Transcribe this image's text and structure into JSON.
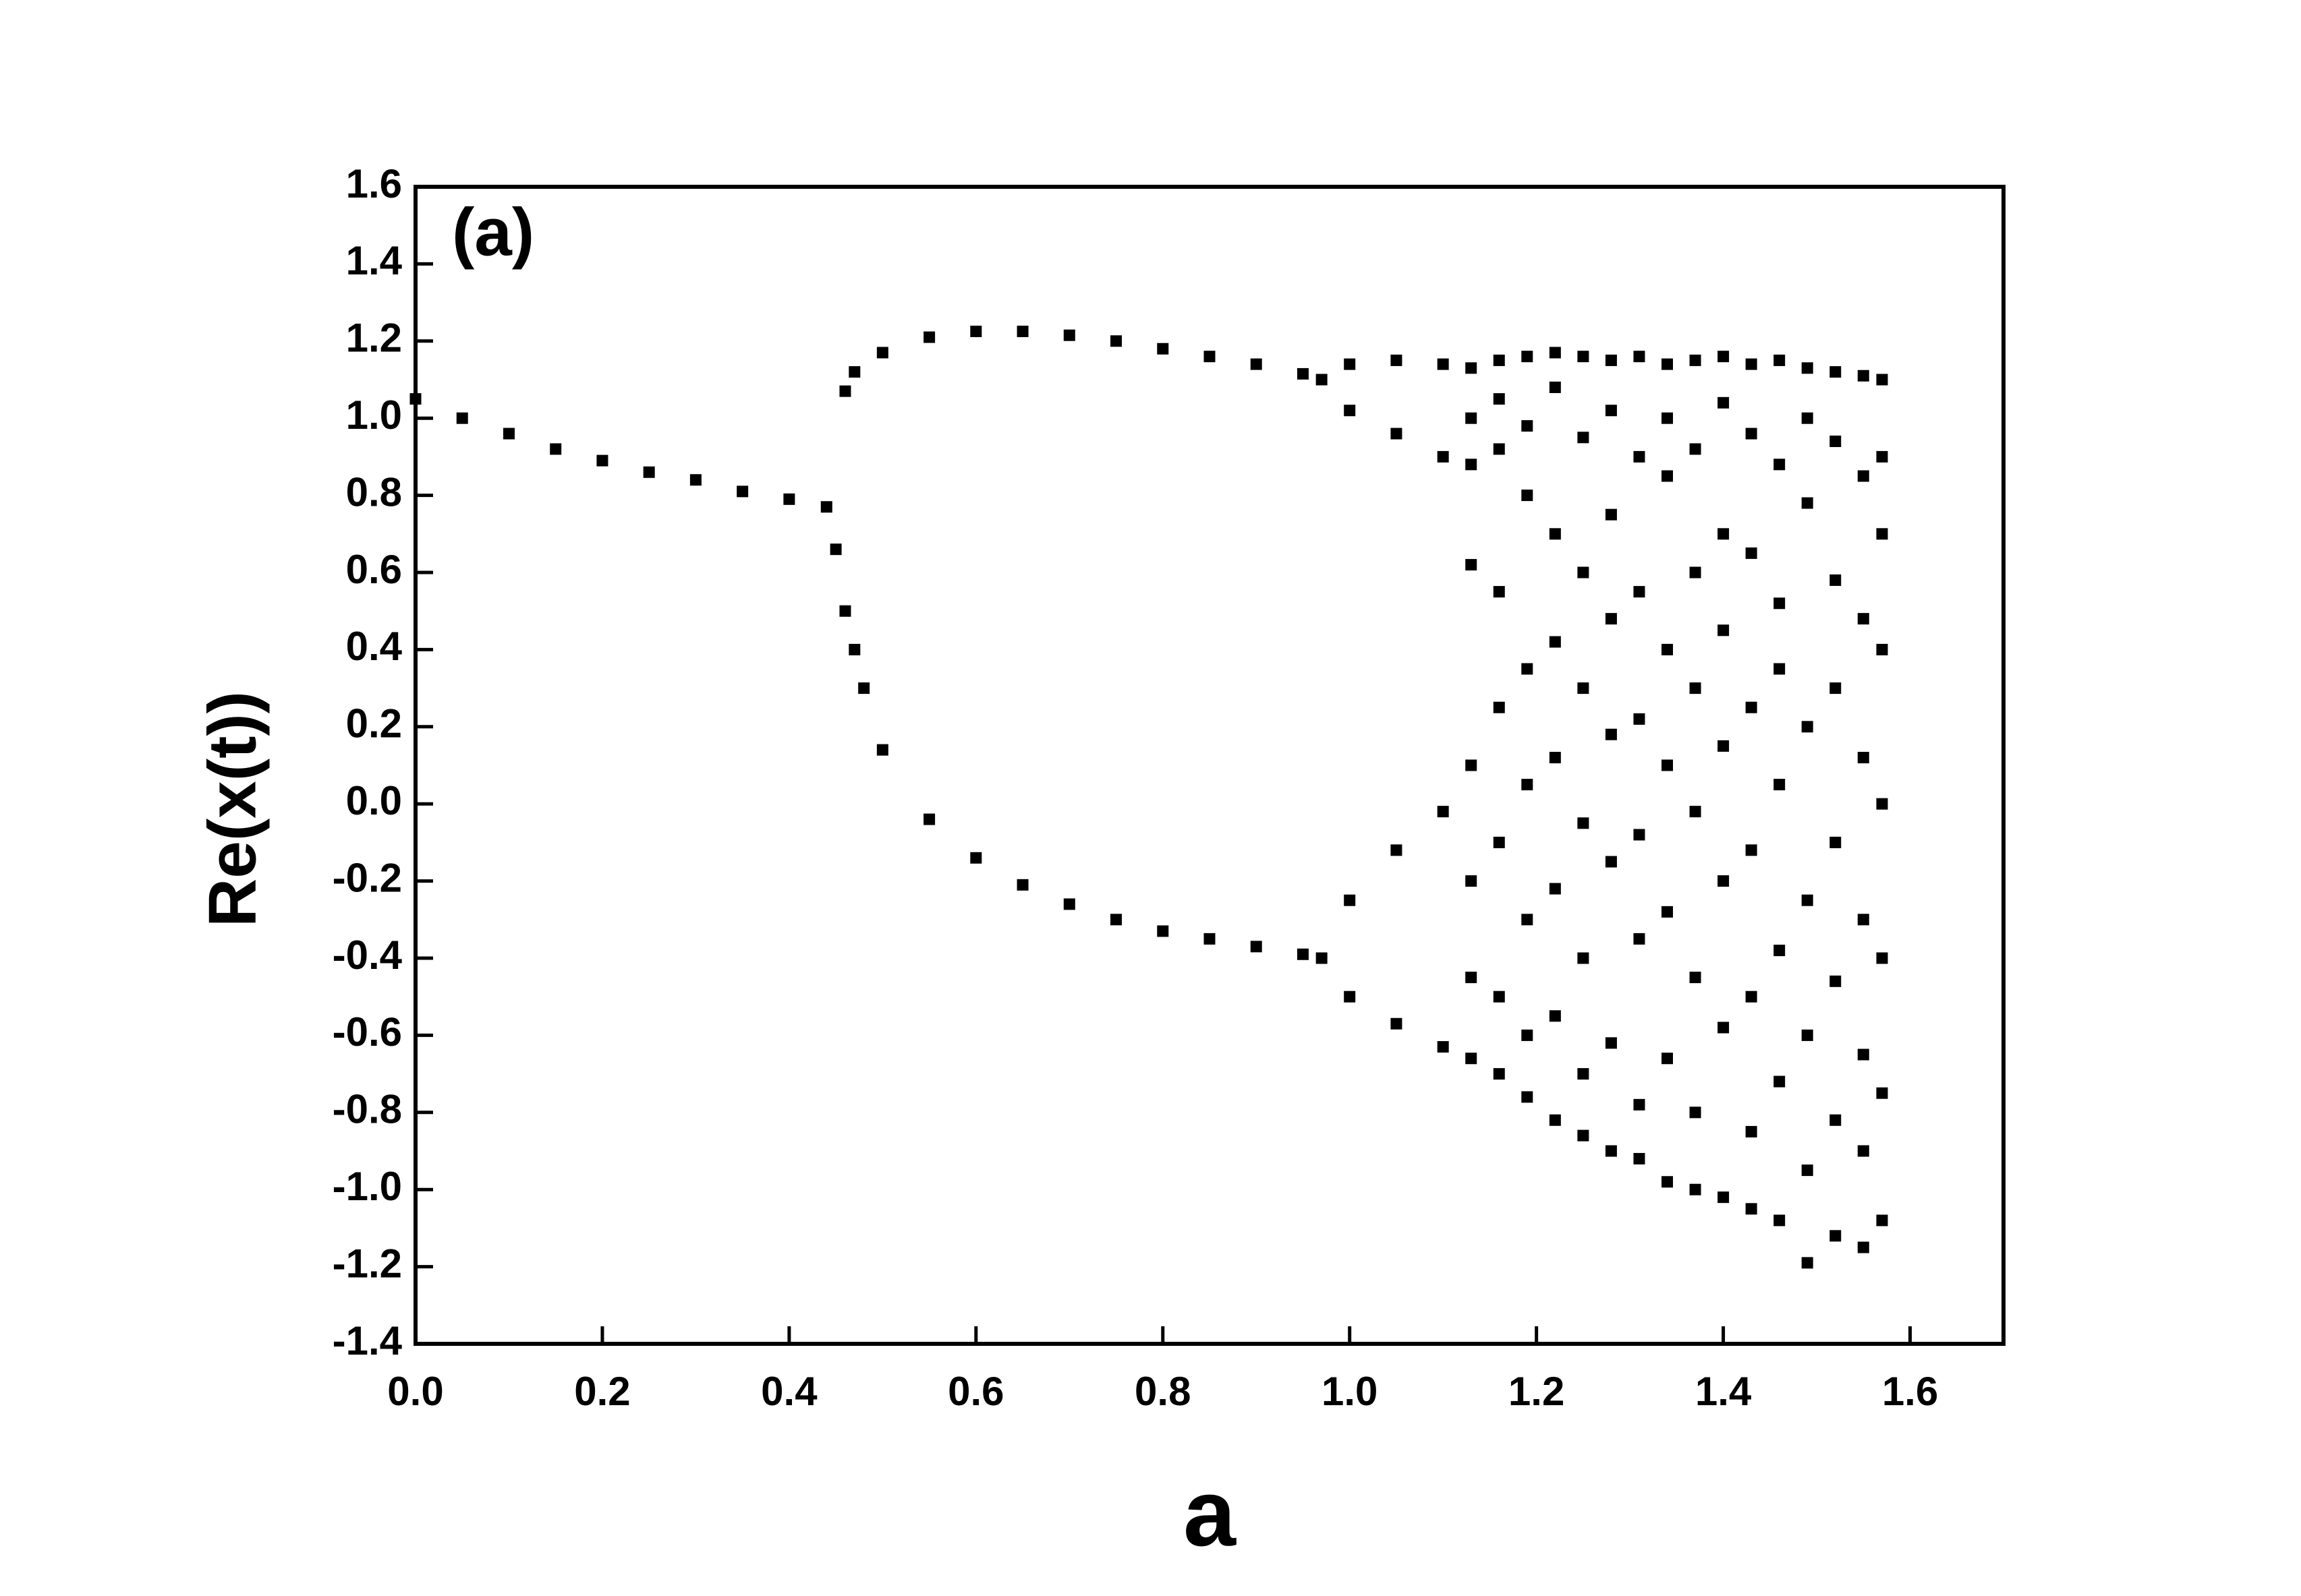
{
  "chart_data": {
    "type": "scatter",
    "annotation": "(a)",
    "xlabel": "a",
    "ylabel": "Re(x(t))",
    "color": "#000000",
    "xlim": [
      0,
      1.7
    ],
    "ylim": [
      -1.4,
      1.6
    ],
    "xticks": [
      {
        "value": 0,
        "label": "0.0"
      },
      0.2,
      0.4,
      0.6,
      0.8,
      {
        "value": 1,
        "label": "1.0"
      },
      1.2,
      1.4,
      1.6
    ],
    "yticks": [
      -1.4,
      -1.2,
      {
        "value": -1,
        "label": "-1.0"
      },
      -0.8,
      -0.6,
      -0.4,
      -0.2,
      {
        "value": 0,
        "label": "0.0"
      },
      0.2,
      0.4,
      0.6,
      0.8,
      {
        "value": 1,
        "label": "1.0"
      },
      1.2,
      1.4,
      1.6
    ],
    "x": [
      0,
      0.05,
      0.1,
      0.15,
      0.2,
      0.25,
      0.3,
      0.35,
      0.4,
      0.44,
      0.46,
      0.47,
      0.5,
      0.55,
      0.6,
      0.65,
      0.7,
      0.75,
      0.8,
      0.85,
      0.9,
      0.95,
      0.97,
      0.45,
      0.46,
      0.47,
      0.48,
      0.5,
      0.55,
      0.6,
      0.65,
      0.7,
      0.75,
      0.8,
      0.85,
      0.9,
      0.95,
      0.97,
      1.0,
      1.05,
      1.1,
      1.0,
      1.05,
      1.1,
      1.0,
      1.05,
      1.1,
      1.0,
      1.05,
      1.1,
      1.13,
      1.13,
      1.13,
      1.13,
      1.13,
      1.13,
      1.13,
      1.13,
      1.16,
      1.16,
      1.16,
      1.16,
      1.16,
      1.16,
      1.16,
      1.16,
      1.19,
      1.19,
      1.19,
      1.19,
      1.19,
      1.19,
      1.19,
      1.19,
      1.22,
      1.22,
      1.22,
      1.22,
      1.22,
      1.22,
      1.22,
      1.22,
      1.25,
      1.25,
      1.25,
      1.25,
      1.25,
      1.25,
      1.25,
      1.25,
      1.28,
      1.28,
      1.28,
      1.28,
      1.28,
      1.28,
      1.28,
      1.28,
      1.31,
      1.31,
      1.31,
      1.31,
      1.31,
      1.31,
      1.31,
      1.31,
      1.34,
      1.34,
      1.34,
      1.34,
      1.34,
      1.34,
      1.34,
      1.34,
      1.37,
      1.37,
      1.37,
      1.37,
      1.37,
      1.37,
      1.37,
      1.37,
      1.4,
      1.4,
      1.4,
      1.4,
      1.4,
      1.4,
      1.4,
      1.4,
      1.43,
      1.43,
      1.43,
      1.43,
      1.43,
      1.43,
      1.43,
      1.43,
      1.46,
      1.46,
      1.46,
      1.46,
      1.46,
      1.46,
      1.46,
      1.46,
      1.49,
      1.49,
      1.49,
      1.49,
      1.49,
      1.49,
      1.49,
      1.49,
      1.52,
      1.52,
      1.52,
      1.52,
      1.52,
      1.52,
      1.52,
      1.52,
      1.55,
      1.55,
      1.55,
      1.55,
      1.55,
      1.55,
      1.55,
      1.55,
      1.57,
      1.57,
      1.57,
      1.57,
      1.57,
      1.57,
      1.57,
      1.57
    ],
    "y": [
      1.05,
      1.0,
      0.96,
      0.92,
      0.89,
      0.86,
      0.84,
      0.81,
      0.79,
      0.77,
      1.07,
      1.12,
      1.17,
      1.21,
      1.225,
      1.225,
      1.215,
      1.2,
      1.18,
      1.16,
      1.14,
      1.115,
      1.1,
      0.66,
      0.5,
      0.4,
      0.3,
      0.14,
      -0.04,
      -0.14,
      -0.21,
      -0.26,
      -0.3,
      -0.33,
      -0.35,
      -0.37,
      -0.39,
      -0.4,
      1.14,
      1.15,
      1.14,
      1.02,
      0.96,
      0.9,
      -0.25,
      -0.12,
      -0.02,
      -0.5,
      -0.57,
      -0.63,
      1.13,
      1.0,
      0.88,
      0.62,
      0.1,
      -0.2,
      -0.45,
      -0.66,
      1.15,
      1.05,
      0.92,
      0.55,
      0.25,
      -0.1,
      -0.5,
      -0.7,
      1.16,
      0.98,
      0.8,
      0.35,
      0.05,
      -0.3,
      -0.6,
      -0.76,
      1.17,
      1.08,
      0.7,
      0.42,
      0.12,
      -0.22,
      -0.55,
      -0.82,
      1.16,
      0.95,
      0.6,
      0.3,
      -0.05,
      -0.4,
      -0.7,
      -0.86,
      1.15,
      1.02,
      0.75,
      0.48,
      0.18,
      -0.15,
      -0.62,
      -0.9,
      1.16,
      0.9,
      0.55,
      0.22,
      -0.08,
      -0.35,
      -0.78,
      -0.92,
      1.14,
      1.0,
      0.85,
      0.4,
      0.1,
      -0.28,
      -0.66,
      -0.98,
      1.15,
      0.92,
      0.6,
      0.3,
      -0.02,
      -0.45,
      -0.8,
      -1.0,
      1.16,
      1.04,
      0.7,
      0.45,
      0.15,
      -0.2,
      -0.58,
      -1.02,
      1.14,
      0.96,
      0.65,
      0.25,
      -0.12,
      -0.5,
      -0.85,
      -1.05,
      1.15,
      0.88,
      0.52,
      0.35,
      0.05,
      -0.38,
      -0.72,
      -1.08,
      1.13,
      1.0,
      0.78,
      0.2,
      -0.25,
      -0.6,
      -0.95,
      -1.19,
      1.12,
      0.94,
      0.58,
      0.3,
      -0.1,
      -0.46,
      -0.82,
      -1.12,
      1.11,
      0.85,
      0.48,
      0.12,
      -0.3,
      -0.65,
      -0.9,
      -1.15,
      1.1,
      0.9,
      0.7,
      0.4,
      0.0,
      -0.4,
      -0.75,
      -1.08
    ]
  }
}
